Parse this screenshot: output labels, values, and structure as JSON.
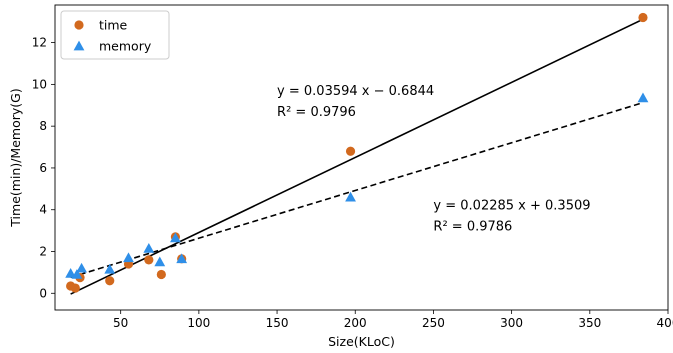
{
  "chart_data": {
    "type": "scatter",
    "xlabel": "Size(KLoC)",
    "ylabel": "Time(min)/Memory(G)",
    "xlim": [
      8,
      400
    ],
    "ylim": [
      -0.8,
      13.8
    ],
    "xticks": [
      "50",
      "100",
      "150",
      "200",
      "250",
      "300",
      "350",
      "400"
    ],
    "xtick_values": [
      50,
      100,
      150,
      200,
      250,
      300,
      350,
      400
    ],
    "yticks": [
      "0",
      "2",
      "4",
      "6",
      "8",
      "10",
      "12"
    ],
    "ytick_values": [
      0,
      2,
      4,
      6,
      8,
      10,
      12
    ],
    "legend_position": "top-left",
    "series": [
      {
        "name": "time",
        "marker": "circle",
        "color": "#d2691e",
        "x": [
          18,
          21,
          24,
          43,
          55,
          68,
          76,
          85,
          89,
          197,
          384
        ],
        "y": [
          0.35,
          0.25,
          0.75,
          0.6,
          1.4,
          1.6,
          0.9,
          2.7,
          1.65,
          6.8,
          13.2
        ]
      },
      {
        "name": "memory",
        "marker": "triangle",
        "color": "#2f8fe8",
        "x": [
          18,
          22,
          25,
          43,
          55,
          68,
          75,
          85,
          89,
          197,
          384
        ],
        "y": [
          0.95,
          0.9,
          1.2,
          1.15,
          1.7,
          2.15,
          1.5,
          2.65,
          1.65,
          4.6,
          9.35
        ]
      }
    ],
    "fits": [
      {
        "series": "time",
        "style": "solid",
        "slope": 0.03594,
        "intercept": -0.6844,
        "x_range": [
          18,
          384
        ],
        "equation": "y = 0.03594 x − 0.6844",
        "r2_label": "R² = 0.9796",
        "anchor": [
          150,
          9.5
        ]
      },
      {
        "series": "memory",
        "style": "dashed",
        "slope": 0.02285,
        "intercept": 0.3509,
        "x_range": [
          18,
          384
        ],
        "equation": "y = 0.02285 x + 0.3509",
        "r2_label": "R² = 0.9786",
        "anchor": [
          250,
          4.0
        ]
      }
    ]
  }
}
